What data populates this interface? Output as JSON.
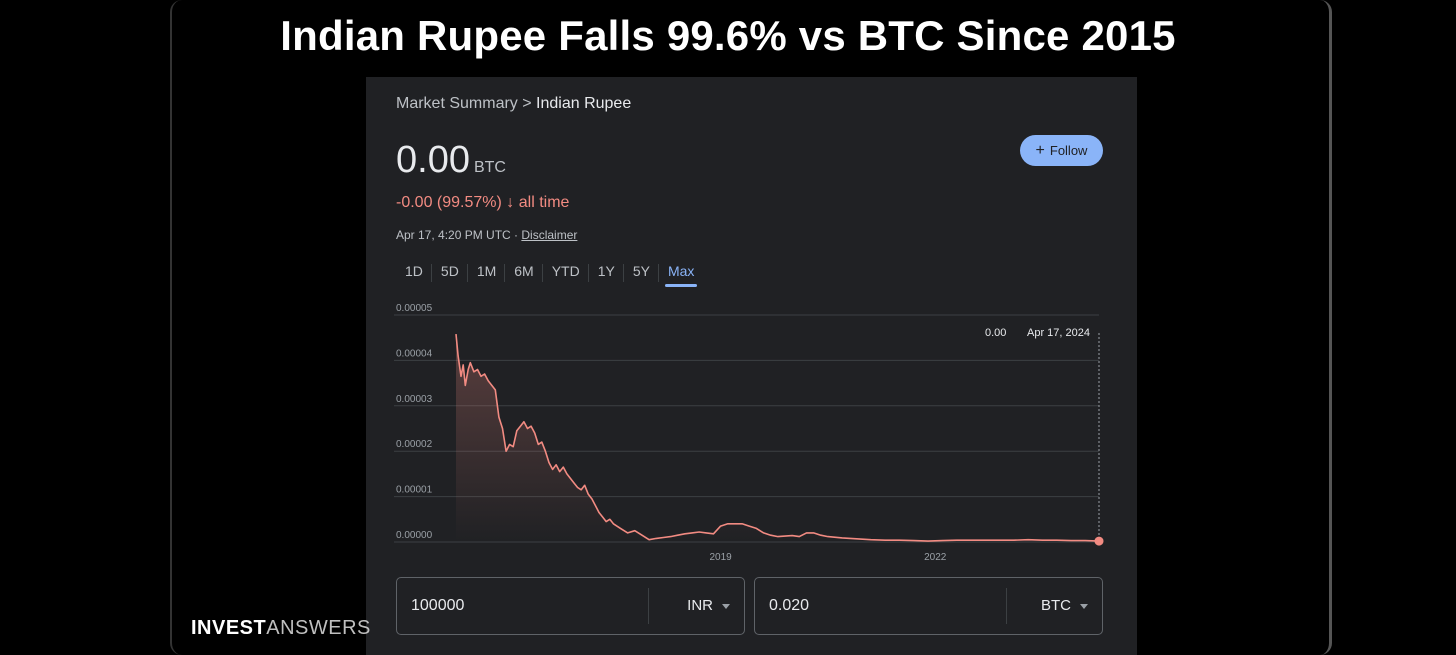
{
  "headline": "Indian Rupee Falls 99.6% vs BTC Since 2015",
  "breadcrumb": {
    "parent": "Market Summary",
    "separator": " > ",
    "current": "Indian Rupee"
  },
  "price": {
    "value": "0.00",
    "unit": "BTC"
  },
  "change": {
    "text": "-0.00 (99.57%)",
    "arrow": "↓",
    "period": "all time"
  },
  "timestamp": {
    "text": "Apr 17, 4:20 PM UTC · ",
    "disclaimer": "Disclaimer"
  },
  "follow_button": {
    "icon": "+",
    "label": "Follow"
  },
  "tabs": [
    {
      "label": "1D",
      "active": false
    },
    {
      "label": "5D",
      "active": false
    },
    {
      "label": "1M",
      "active": false
    },
    {
      "label": "6M",
      "active": false
    },
    {
      "label": "YTD",
      "active": false
    },
    {
      "label": "1Y",
      "active": false
    },
    {
      "label": "5Y",
      "active": false
    },
    {
      "label": "Max",
      "active": true
    }
  ],
  "chart_data": {
    "type": "area",
    "title": "",
    "xlabel": "",
    "ylabel": "",
    "x_tick_labels": [
      "2019",
      "2022"
    ],
    "x_tick_years": [
      2019,
      2022
    ],
    "y_tick_labels": [
      "0.00000",
      "0.00001",
      "0.00002",
      "0.00003",
      "0.00004",
      "0.00005"
    ],
    "ylim": [
      0,
      5e-05
    ],
    "xlim": [
      2015.3,
      2024.29
    ],
    "grid": true,
    "legend": "none",
    "line_color": "#f28b82",
    "tooltip": {
      "value": "0.00",
      "date": "Apr 17, 2024"
    },
    "series": [
      {
        "x": [
          2015.3,
          2015.33,
          2015.37,
          2015.4,
          2015.43,
          2015.47,
          2015.5,
          2015.55,
          2015.6,
          2015.65,
          2015.7,
          2015.75,
          2015.8,
          2015.85,
          2015.9,
          2015.95,
          2016.0,
          2016.05,
          2016.1,
          2016.15,
          2016.2,
          2016.25,
          2016.3,
          2016.35,
          2016.4,
          2016.45,
          2016.5,
          2016.55,
          2016.6,
          2016.65,
          2016.7,
          2016.75,
          2016.8,
          2016.85,
          2016.9,
          2016.95,
          2017.0,
          2017.05,
          2017.1,
          2017.15,
          2017.2,
          2017.25,
          2017.3,
          2017.35,
          2017.4,
          2017.45,
          2017.5,
          2017.6,
          2017.7,
          2017.8,
          2017.9,
          2018.0,
          2018.1,
          2018.2,
          2018.3,
          2018.4,
          2018.5,
          2018.6,
          2018.7,
          2018.8,
          2018.9,
          2019.0,
          2019.1,
          2019.2,
          2019.3,
          2019.4,
          2019.5,
          2019.6,
          2019.7,
          2019.8,
          2019.9,
          2020.0,
          2020.1,
          2020.2,
          2020.3,
          2020.4,
          2020.5,
          2020.7,
          2020.9,
          2021.1,
          2021.3,
          2021.5,
          2021.7,
          2021.9,
          2022.1,
          2022.3,
          2022.5,
          2022.7,
          2022.9,
          2023.1,
          2023.3,
          2023.5,
          2023.7,
          2023.9,
          2024.1,
          2024.29
        ],
        "y": [
          4.58e-05,
          4.1e-05,
          3.65e-05,
          3.9e-05,
          3.45e-05,
          3.8e-05,
          3.95e-05,
          3.75e-05,
          3.8e-05,
          3.65e-05,
          3.7e-05,
          3.55e-05,
          3.45e-05,
          3.35e-05,
          2.75e-05,
          2.5e-05,
          2e-05,
          2.15e-05,
          2.1e-05,
          2.45e-05,
          2.55e-05,
          2.65e-05,
          2.5e-05,
          2.55e-05,
          2.4e-05,
          2.15e-05,
          2.2e-05,
          2e-05,
          1.75e-05,
          1.6e-05,
          1.7e-05,
          1.55e-05,
          1.65e-05,
          1.5e-05,
          1.4e-05,
          1.3e-05,
          1.2e-05,
          1.15e-05,
          1.25e-05,
          1.05e-05,
          9.5e-06,
          8e-06,
          6.5e-06,
          5.5e-06,
          4.5e-06,
          5e-06,
          4e-06,
          3e-06,
          2e-06,
          2.5e-06,
          1.5e-06,
          5e-07,
          8e-07,
          1e-06,
          1.2e-06,
          1.5e-06,
          1.8e-06,
          2e-06,
          2.2e-06,
          2e-06,
          1.8e-06,
          3.5e-06,
          4e-06,
          4e-06,
          4e-06,
          3.5e-06,
          3e-06,
          2e-06,
          1.5e-06,
          1.2e-06,
          1.3e-06,
          1.4e-06,
          1.2e-06,
          2e-06,
          2e-06,
          1.5e-06,
          1.2e-06,
          9e-07,
          7e-07,
          5e-07,
          4e-07,
          4e-07,
          3e-07,
          2e-07,
          3e-07,
          4e-07,
          4e-07,
          4e-07,
          4e-07,
          4e-07,
          5e-07,
          4e-07,
          4e-07,
          3e-07,
          3e-07,
          2e-07
        ]
      }
    ]
  },
  "converter": [
    {
      "value": "100000",
      "currency": "INR"
    },
    {
      "value": "0.020",
      "currency": "BTC"
    }
  ],
  "brand": {
    "part1": "INVEST",
    "part2": "ANSWERS"
  }
}
